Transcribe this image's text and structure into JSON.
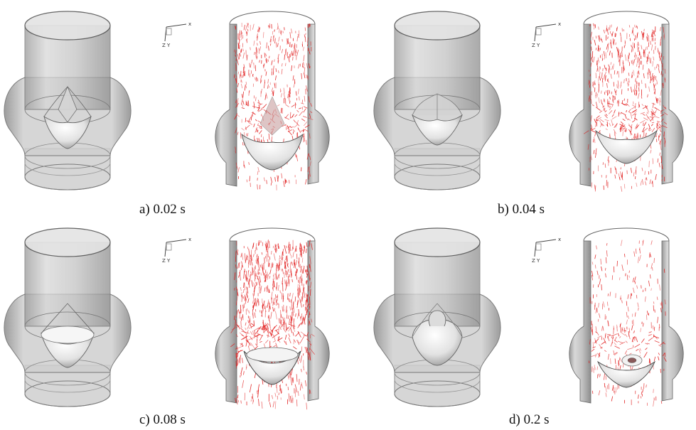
{
  "panels": [
    {
      "id": "a",
      "caption": "a) 0.02 s",
      "axis": {
        "x": "x",
        "y": "Y",
        "z": "Z"
      }
    },
    {
      "id": "b",
      "caption": "b) 0.04 s",
      "axis": {
        "x": "x",
        "y": "Y",
        "z": "Z"
      }
    },
    {
      "id": "c",
      "caption": "c) 0.08 s",
      "axis": {
        "x": "x",
        "y": "Y",
        "z": "Z"
      }
    },
    {
      "id": "d",
      "caption": "d) 0.2 s",
      "axis": {
        "x": "x",
        "y": "Y",
        "z": "Z"
      }
    }
  ],
  "colors": {
    "vector": "#e01212",
    "shell": "#a9a9a9",
    "leaflet": "#e6e6e6"
  }
}
